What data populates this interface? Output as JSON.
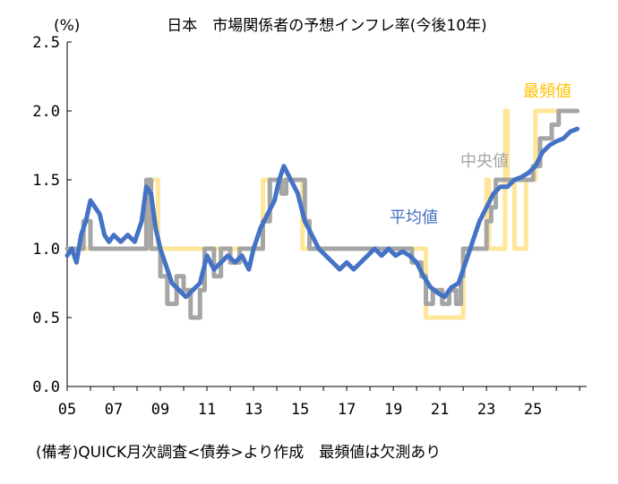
{
  "chart_data": {
    "type": "line",
    "title": "日本　市場関係者の予想インフレ率(今後10年)",
    "unit_label": "(%)",
    "footnote": "(備考)QUICK月次調査<債券>より作成　最頻値は欠測あり",
    "ylim": [
      0.0,
      2.5
    ],
    "yticks": [
      "0.0",
      "0.5",
      "1.0",
      "1.5",
      "2.0",
      "2.5"
    ],
    "xlim": [
      2005.0,
      2027.3
    ],
    "xticks": [
      {
        "x": 2005,
        "label": "05"
      },
      {
        "x": 2007,
        "label": "07"
      },
      {
        "x": 2009,
        "label": "09"
      },
      {
        "x": 2011,
        "label": "11"
      },
      {
        "x": 2013,
        "label": "13"
      },
      {
        "x": 2015,
        "label": "15"
      },
      {
        "x": 2017,
        "label": "17"
      },
      {
        "x": 2019,
        "label": "19"
      },
      {
        "x": 2021,
        "label": "21"
      },
      {
        "x": 2023,
        "label": "23"
      },
      {
        "x": 2025,
        "label": "25"
      }
    ],
    "grid": false,
    "series": [
      {
        "name": "最頻値",
        "color": "#FFE699",
        "step": true,
        "points": [
          [
            2005.0,
            1.0
          ],
          [
            2008.4,
            1.0
          ],
          [
            2008.5,
            1.5
          ],
          [
            2008.9,
            1.0
          ],
          [
            2013.0,
            1.0
          ],
          [
            2013.4,
            1.5
          ],
          [
            2015.0,
            1.5
          ],
          [
            2015.1,
            1.0
          ],
          [
            2020.3,
            1.0
          ],
          [
            2020.4,
            0.5
          ],
          [
            2021.9,
            0.5
          ],
          [
            2022.0,
            1.0
          ],
          [
            2022.9,
            1.0
          ],
          [
            2023.0,
            1.5
          ],
          [
            2023.1,
            1.0
          ],
          [
            2023.7,
            1.0
          ],
          [
            2023.8,
            2.0
          ],
          [
            2023.9,
            1.5
          ],
          [
            2024.1,
            1.5
          ],
          [
            2024.2,
            1.0
          ],
          [
            2024.6,
            1.0
          ],
          [
            2024.7,
            1.5
          ],
          [
            2025.0,
            1.5
          ],
          [
            2025.1,
            2.0
          ],
          [
            2026.9,
            2.0
          ]
        ]
      },
      {
        "name": "中央値",
        "color": "#A5A5A5",
        "step": true,
        "points": [
          [
            2005.0,
            1.0
          ],
          [
            2005.6,
            1.0
          ],
          [
            2005.7,
            1.2
          ],
          [
            2006.0,
            1.0
          ],
          [
            2006.8,
            1.0
          ],
          [
            2007.3,
            1.0
          ],
          [
            2008.2,
            1.0
          ],
          [
            2008.4,
            1.5
          ],
          [
            2008.6,
            1.0
          ],
          [
            2009.0,
            0.8
          ],
          [
            2009.3,
            0.6
          ],
          [
            2009.7,
            0.8
          ],
          [
            2010.0,
            0.7
          ],
          [
            2010.3,
            0.5
          ],
          [
            2010.7,
            0.7
          ],
          [
            2010.9,
            1.0
          ],
          [
            2011.3,
            0.8
          ],
          [
            2011.6,
            1.0
          ],
          [
            2012.0,
            0.9
          ],
          [
            2012.4,
            1.0
          ],
          [
            2013.0,
            1.0
          ],
          [
            2013.4,
            1.2
          ],
          [
            2013.7,
            1.5
          ],
          [
            2014.2,
            1.4
          ],
          [
            2014.4,
            1.5
          ],
          [
            2015.0,
            1.5
          ],
          [
            2015.2,
            1.2
          ],
          [
            2015.4,
            1.0
          ],
          [
            2016.2,
            1.0
          ],
          [
            2019.5,
            1.0
          ],
          [
            2019.8,
            0.9
          ],
          [
            2020.2,
            0.8
          ],
          [
            2020.4,
            0.6
          ],
          [
            2020.7,
            0.7
          ],
          [
            2021.1,
            0.6
          ],
          [
            2021.4,
            0.7
          ],
          [
            2021.7,
            0.6
          ],
          [
            2021.9,
            0.8
          ],
          [
            2022.0,
            1.0
          ],
          [
            2022.9,
            1.0
          ],
          [
            2023.0,
            1.2
          ],
          [
            2023.2,
            1.3
          ],
          [
            2023.4,
            1.5
          ],
          [
            2025.0,
            1.6
          ],
          [
            2025.3,
            1.8
          ],
          [
            2025.8,
            1.9
          ],
          [
            2026.1,
            2.0
          ],
          [
            2026.9,
            2.0
          ]
        ]
      },
      {
        "name": "平均値",
        "color": "#4472C4",
        "step": false,
        "points": [
          [
            2005.0,
            0.95
          ],
          [
            2005.2,
            1.0
          ],
          [
            2005.4,
            0.9
          ],
          [
            2005.6,
            1.1
          ],
          [
            2005.8,
            1.2
          ],
          [
            2006.0,
            1.35
          ],
          [
            2006.2,
            1.3
          ],
          [
            2006.4,
            1.25
          ],
          [
            2006.6,
            1.1
          ],
          [
            2006.8,
            1.05
          ],
          [
            2007.0,
            1.1
          ],
          [
            2007.3,
            1.05
          ],
          [
            2007.6,
            1.1
          ],
          [
            2007.9,
            1.05
          ],
          [
            2008.2,
            1.2
          ],
          [
            2008.4,
            1.45
          ],
          [
            2008.6,
            1.4
          ],
          [
            2008.8,
            1.15
          ],
          [
            2009.0,
            1.0
          ],
          [
            2009.2,
            0.9
          ],
          [
            2009.5,
            0.75
          ],
          [
            2009.8,
            0.7
          ],
          [
            2010.1,
            0.65
          ],
          [
            2010.4,
            0.7
          ],
          [
            2010.7,
            0.75
          ],
          [
            2011.0,
            0.95
          ],
          [
            2011.3,
            0.85
          ],
          [
            2011.6,
            0.9
          ],
          [
            2011.9,
            0.95
          ],
          [
            2012.2,
            0.9
          ],
          [
            2012.5,
            0.95
          ],
          [
            2012.8,
            0.85
          ],
          [
            2013.0,
            1.0
          ],
          [
            2013.3,
            1.15
          ],
          [
            2013.6,
            1.25
          ],
          [
            2013.9,
            1.35
          ],
          [
            2014.1,
            1.5
          ],
          [
            2014.3,
            1.6
          ],
          [
            2014.6,
            1.5
          ],
          [
            2014.9,
            1.4
          ],
          [
            2015.2,
            1.2
          ],
          [
            2015.5,
            1.1
          ],
          [
            2015.8,
            1.0
          ],
          [
            2016.1,
            0.95
          ],
          [
            2016.4,
            0.9
          ],
          [
            2016.7,
            0.85
          ],
          [
            2017.0,
            0.9
          ],
          [
            2017.3,
            0.85
          ],
          [
            2017.6,
            0.9
          ],
          [
            2017.9,
            0.95
          ],
          [
            2018.2,
            1.0
          ],
          [
            2018.5,
            0.95
          ],
          [
            2018.8,
            1.0
          ],
          [
            2019.1,
            0.95
          ],
          [
            2019.4,
            0.98
          ],
          [
            2019.7,
            0.95
          ],
          [
            2020.0,
            0.9
          ],
          [
            2020.3,
            0.8
          ],
          [
            2020.6,
            0.72
          ],
          [
            2020.9,
            0.68
          ],
          [
            2021.2,
            0.65
          ],
          [
            2021.5,
            0.72
          ],
          [
            2021.8,
            0.75
          ],
          [
            2022.1,
            0.9
          ],
          [
            2022.4,
            1.05
          ],
          [
            2022.7,
            1.2
          ],
          [
            2023.0,
            1.3
          ],
          [
            2023.3,
            1.4
          ],
          [
            2023.6,
            1.45
          ],
          [
            2023.9,
            1.45
          ],
          [
            2024.2,
            1.5
          ],
          [
            2024.5,
            1.52
          ],
          [
            2024.8,
            1.55
          ],
          [
            2025.1,
            1.6
          ],
          [
            2025.4,
            1.7
          ],
          [
            2025.7,
            1.75
          ],
          [
            2026.0,
            1.78
          ],
          [
            2026.3,
            1.8
          ],
          [
            2026.6,
            1.85
          ],
          [
            2026.9,
            1.87
          ]
        ]
      }
    ]
  }
}
